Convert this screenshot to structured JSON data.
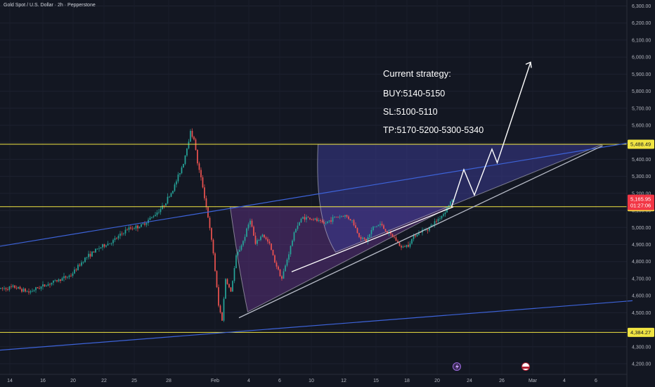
{
  "header": {
    "symbol_line": "Gold Spot / U.S. Dollar · 2h · Pepperstone"
  },
  "strategy": {
    "title": "Current strategy:",
    "buy": "BUY:5140-5150",
    "sl": "SL:5100-5110",
    "tp": "TP:5170-5200-5300-5340"
  },
  "colors": {
    "background": "#131722",
    "up_candle": "#26a69a",
    "down_candle": "#ef5350",
    "horizontal_level": "#f0e442",
    "trendline": "#3d63d9",
    "channel": "#b8bcc8",
    "projection": "#ffffff",
    "fan_fill": "#5a2f7a",
    "price_tag": "#f23645"
  },
  "chart_data": {
    "type": "candlestick",
    "instrument": "Gold Spot / U.S. Dollar",
    "interval": "2h",
    "broker": "Pepperstone",
    "y_axis": {
      "range": [
        4200,
        6300
      ],
      "tick_labels": [
        "6,300.00",
        "6,200.00",
        "6,100.00",
        "6,000.00",
        "5,900.00",
        "5,800.00",
        "5,700.00",
        "5,600.00",
        "5,500.00",
        "5,400.00",
        "5,300.00",
        "5,200.00",
        "5,100.00",
        "5,000.00",
        "4,900.00",
        "4,800.00",
        "4,700.00",
        "4,600.00",
        "4,500.00",
        "4,400.00",
        "4,300.00",
        "4,200.00"
      ],
      "tick_values": [
        6300,
        6200,
        6100,
        6000,
        5900,
        5800,
        5700,
        5600,
        5500,
        5400,
        5300,
        5200,
        5100,
        5000,
        4900,
        4800,
        4700,
        4600,
        4500,
        4400,
        4300,
        4200
      ]
    },
    "x_axis": {
      "labels": [
        "14",
        "16",
        "20",
        "22",
        "25",
        "28",
        "Feb",
        "4",
        "6",
        "10",
        "12",
        "15",
        "18",
        "20",
        "24",
        "26",
        "Mar",
        "4",
        "6"
      ],
      "label_index": [
        0,
        1,
        2,
        3,
        4,
        5,
        6,
        7,
        8,
        9,
        10,
        11,
        12,
        13,
        14,
        15,
        16,
        17,
        18
      ]
    },
    "levels": [
      {
        "value": 5488.49,
        "label": "5,488.49"
      },
      {
        "value": 5121.91,
        "label": "5,121.91"
      },
      {
        "value": 4384.27,
        "label": "4,384.27"
      }
    ],
    "last_price": {
      "value": 5165.95,
      "label": "5,165.95",
      "countdown": "01:27:06"
    },
    "price_path": [
      {
        "bar": 0,
        "price": 4640
      },
      {
        "bar": 8,
        "price": 4650
      },
      {
        "bar": 16,
        "price": 4620
      },
      {
        "bar": 20,
        "price": 4640
      },
      {
        "bar": 30,
        "price": 4680
      },
      {
        "bar": 40,
        "price": 4720
      },
      {
        "bar": 48,
        "price": 4820
      },
      {
        "bar": 56,
        "price": 4880
      },
      {
        "bar": 64,
        "price": 4920
      },
      {
        "bar": 72,
        "price": 4990
      },
      {
        "bar": 80,
        "price": 5010
      },
      {
        "bar": 86,
        "price": 5060
      },
      {
        "bar": 92,
        "price": 5120
      },
      {
        "bar": 98,
        "price": 5220
      },
      {
        "bar": 104,
        "price": 5380
      },
      {
        "bar": 108,
        "price": 5560
      },
      {
        "bar": 110,
        "price": 5520
      },
      {
        "bar": 112,
        "price": 5380
      },
      {
        "bar": 115,
        "price": 5240
      },
      {
        "bar": 118,
        "price": 5060
      },
      {
        "bar": 121,
        "price": 4850
      },
      {
        "bar": 124,
        "price": 4540
      },
      {
        "bar": 126,
        "price": 4460
      },
      {
        "bar": 128,
        "price": 4700
      },
      {
        "bar": 131,
        "price": 4620
      },
      {
        "bar": 134,
        "price": 4830
      },
      {
        "bar": 138,
        "price": 4920
      },
      {
        "bar": 142,
        "price": 5050
      },
      {
        "bar": 145,
        "price": 4900
      },
      {
        "bar": 149,
        "price": 4960
      },
      {
        "bar": 153,
        "price": 4900
      },
      {
        "bar": 156,
        "price": 4800
      },
      {
        "bar": 160,
        "price": 4700
      },
      {
        "bar": 164,
        "price": 4850
      },
      {
        "bar": 168,
        "price": 5000
      },
      {
        "bar": 172,
        "price": 5060
      },
      {
        "bar": 178,
        "price": 5050
      },
      {
        "bar": 184,
        "price": 5020
      },
      {
        "bar": 190,
        "price": 5060
      },
      {
        "bar": 196,
        "price": 5070
      },
      {
        "bar": 200,
        "price": 5040
      },
      {
        "bar": 204,
        "price": 4950
      },
      {
        "bar": 208,
        "price": 4920
      },
      {
        "bar": 212,
        "price": 5000
      },
      {
        "bar": 216,
        "price": 5020
      },
      {
        "bar": 220,
        "price": 4970
      },
      {
        "bar": 224,
        "price": 4940
      },
      {
        "bar": 228,
        "price": 4880
      },
      {
        "bar": 232,
        "price": 4900
      },
      {
        "bar": 236,
        "price": 4960
      },
      {
        "bar": 240,
        "price": 4980
      },
      {
        "bar": 244,
        "price": 5000
      },
      {
        "bar": 248,
        "price": 5040
      },
      {
        "bar": 252,
        "price": 5080
      },
      {
        "bar": 256,
        "price": 5150
      },
      {
        "bar": 258,
        "price": 5166
      }
    ],
    "trendlines": [
      {
        "name": "upper-trendline",
        "from": {
          "bar": 0,
          "price": 4890
        },
        "to": {
          "bar": 360,
          "price": 5500
        }
      },
      {
        "name": "lower-trendline",
        "from": {
          "bar": 0,
          "price": 4280
        },
        "to": {
          "bar": 360,
          "price": 4570
        }
      },
      {
        "name": "channel-support",
        "from": {
          "bar": 136,
          "price": 4470
        },
        "to": {
          "bar": 343,
          "price": 5480
        }
      },
      {
        "name": "channel-inner",
        "from": {
          "bar": 166,
          "price": 4740
        },
        "to": {
          "bar": 258,
          "price": 5121
        }
      }
    ],
    "projection_path": [
      {
        "bar": 257,
        "price": 5121
      },
      {
        "bar": 264,
        "price": 5340
      },
      {
        "bar": 270,
        "price": 5190
      },
      {
        "bar": 280,
        "price": 5460
      },
      {
        "bar": 283,
        "price": 5380
      },
      {
        "bar": 302,
        "price": 5970
      }
    ]
  }
}
